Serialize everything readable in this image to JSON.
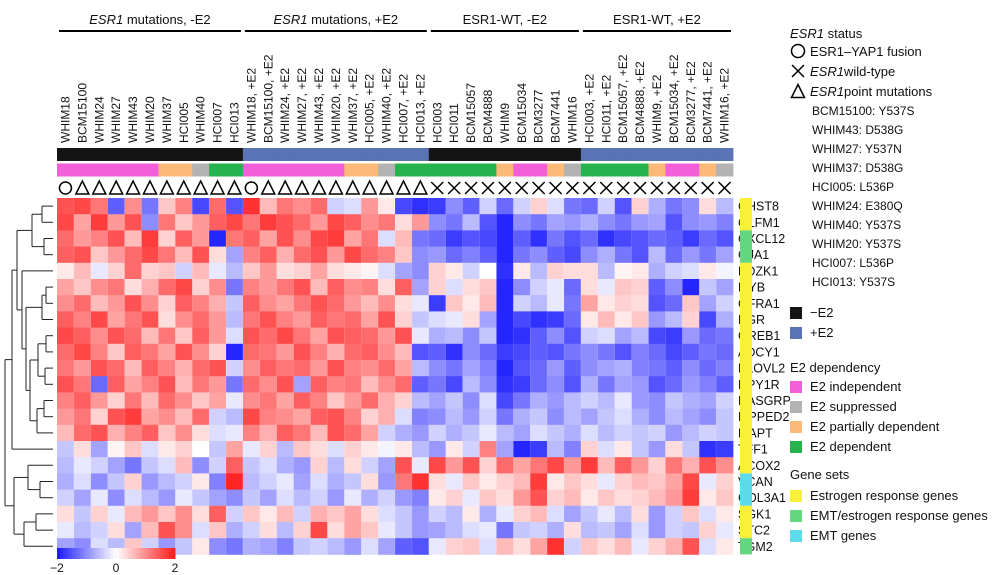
{
  "chart_data": {
    "type": "heatmap",
    "groups": [
      {
        "gene": "ESR1",
        "label": " mutations, -E2",
        "italic_gene": true
      },
      {
        "gene": "ESR1",
        "label": " mutations, +E2",
        "italic_gene": true
      },
      {
        "gene": "",
        "label": "ESR1-WT, -E2",
        "italic_gene": false
      },
      {
        "gene": "",
        "label": "ESR1-WT, +E2",
        "italic_gene": false
      }
    ],
    "columns": [
      "WHIM18",
      "BCM15100",
      "WHIM24",
      "WHIM27",
      "WHIM43",
      "WHIM20",
      "WHIM37",
      "HCI005",
      "WHIM40",
      "HCI007",
      "HCI013",
      "WHIM18, +E2",
      "BCM15100, +E2",
      "WHIM24, +E2",
      "WHIM27, +E2",
      "WHIM43, +E2",
      "WHIM20, +E2",
      "WHIM37, +E2",
      "HCI005, +E2",
      "WHIM40, +E2",
      "HCI007, +E2",
      "HCI013, +E2",
      "HCI003",
      "HCI011",
      "BCM15057",
      "BCM4888",
      "WHIM9",
      "BCM15034",
      "BCM3277",
      "BCM7441",
      "WHIM16",
      "HCI003, +E2",
      "HCI011, +E2",
      "BCM15057, +E2",
      "BCM4888, +E2",
      "WHIM9, +E2",
      "BCM15034, +E2",
      "BCM3277, +E2",
      "BCM7441, +E2",
      "WHIM16, +E2"
    ],
    "column_group": [
      0,
      0,
      0,
      0,
      0,
      0,
      0,
      0,
      0,
      0,
      0,
      1,
      1,
      1,
      1,
      1,
      1,
      1,
      1,
      1,
      1,
      1,
      2,
      2,
      2,
      2,
      2,
      2,
      2,
      2,
      2,
      3,
      3,
      3,
      3,
      3,
      3,
      3,
      3,
      3
    ],
    "treatment": [
      "-E2",
      "-E2",
      "-E2",
      "-E2",
      "-E2",
      "-E2",
      "-E2",
      "-E2",
      "-E2",
      "-E2",
      "-E2",
      "+E2",
      "+E2",
      "+E2",
      "+E2",
      "+E2",
      "+E2",
      "+E2",
      "+E2",
      "+E2",
      "+E2",
      "+E2",
      "-E2",
      "-E2",
      "-E2",
      "-E2",
      "-E2",
      "-E2",
      "-E2",
      "-E2",
      "-E2",
      "+E2",
      "+E2",
      "+E2",
      "+E2",
      "+E2",
      "+E2",
      "+E2",
      "+E2",
      "+E2"
    ],
    "dependency": [
      "ind",
      "ind",
      "ind",
      "ind",
      "ind",
      "ind",
      "pdep",
      "pdep",
      "sup",
      "dep",
      "dep",
      "ind",
      "ind",
      "ind",
      "ind",
      "ind",
      "ind",
      "pdep",
      "pdep",
      "sup",
      "dep",
      "dep",
      "dep",
      "dep",
      "dep",
      "dep",
      "pdep",
      "ind",
      "ind",
      "pdep",
      "sup",
      "dep",
      "dep",
      "dep",
      "dep",
      "pdep",
      "ind",
      "ind",
      "pdep",
      "sup"
    ],
    "esr1_status": [
      "fusion",
      "point",
      "point",
      "point",
      "point",
      "point",
      "point",
      "point",
      "point",
      "point",
      "point",
      "fusion",
      "point",
      "point",
      "point",
      "point",
      "point",
      "point",
      "point",
      "point",
      "point",
      "point",
      "wt",
      "wt",
      "wt",
      "wt",
      "wt",
      "wt",
      "wt",
      "wt",
      "wt",
      "wt",
      "wt",
      "wt",
      "wt",
      "wt",
      "wt",
      "wt",
      "wt",
      "wt"
    ],
    "rows": [
      "CHST8",
      "OLFM1",
      "CXCL12",
      "GJA1",
      "PDZK1",
      "MYB",
      "GFRA1",
      "PGR",
      "GREB1",
      "ADCY1",
      "ELOVL2",
      "NPY1R",
      "RASGRP1",
      "MPPED2",
      "MAPT",
      "TFF1",
      "ACOX2",
      "VCAN",
      "COL3A1",
      "SGK1",
      "STC2",
      "TGM2"
    ],
    "gene_set": [
      "est",
      "est",
      "emtest",
      "emtest",
      "est",
      "est",
      "est",
      "est",
      "est",
      "est",
      "est",
      "est",
      "est",
      "est",
      "est",
      "est",
      "est",
      "emt",
      "emt",
      "est",
      "est",
      "emtest"
    ],
    "values": [
      [
        1.5,
        1.6,
        1.2,
        -1.4,
        1.0,
        -1.2,
        0.5,
        1.1,
        -1.6,
        1.3,
        -1.5,
        1.8,
        0.6,
        1.2,
        1.0,
        1.3,
        -0.4,
        -0.3,
        0.9,
        0.2,
        -1.6,
        -1.8,
        -1.7,
        -1.0,
        -1.4,
        -0.4,
        -1.3,
        -0.4,
        0.4,
        -0.3,
        -1.2,
        -1.3,
        -0.4,
        -1.5,
        0.4,
        -0.7,
        -1.2,
        -1.0,
        0.3,
        -0.6
      ],
      [
        1.6,
        0.8,
        1.7,
        0.9,
        1.5,
        -1.0,
        1.2,
        0.5,
        0.9,
        1.4,
        1.6,
        1.2,
        1.7,
        1.5,
        1.3,
        0.9,
        1.6,
        1.4,
        1.0,
        1.2,
        0.3,
        0.9,
        -1.0,
        -1.2,
        -0.6,
        -1.5,
        -1.9,
        -1.0,
        -1.2,
        -0.8,
        -0.9,
        -0.7,
        -1.0,
        -1.2,
        -0.9,
        -0.8,
        -1.5,
        -1.0,
        -0.9,
        -1.1
      ],
      [
        1.3,
        0.9,
        1.1,
        1.5,
        0.6,
        1.7,
        0.4,
        1.4,
        0.9,
        -1.9,
        1.2,
        1.4,
        0.8,
        1.5,
        1.0,
        1.6,
        1.7,
        0.8,
        1.2,
        -0.3,
        0.6,
        -1.2,
        -1.3,
        -1.7,
        -1.5,
        -1.6,
        -1.9,
        -1.4,
        -1.8,
        -1.2,
        -1.5,
        -1.3,
        -1.8,
        -1.6,
        -1.5,
        -1.3,
        -1.4,
        -1.7,
        -1.3,
        -1.5
      ],
      [
        1.4,
        1.5,
        0.5,
        0.9,
        1.3,
        1.6,
        1.2,
        0.6,
        1.5,
        0.3,
        -0.8,
        1.1,
        1.4,
        0.7,
        1.3,
        1.5,
        0.9,
        1.6,
        1.3,
        1.1,
        0.5,
        -1.0,
        -0.9,
        -1.3,
        -1.1,
        -1.4,
        -1.9,
        -1.2,
        -1.0,
        -1.4,
        -1.6,
        -1.0,
        -0.7,
        -1.2,
        -1.5,
        -0.6,
        -1.3,
        -0.9,
        -1.2,
        -0.8
      ],
      [
        0.2,
        0.6,
        -0.2,
        0.4,
        1.3,
        0.4,
        0.5,
        -0.4,
        0.6,
        -0.2,
        -0.6,
        0.5,
        0.9,
        0.3,
        0.4,
        0.8,
        0.3,
        0.2,
        0.1,
        -0.3,
        -0.8,
        -1.0,
        0.4,
        0.2,
        -0.4,
        0.0,
        -1.8,
        0.2,
        -0.6,
        0.4,
        0.3,
        0.3,
        -0.6,
        0.1,
        0.2,
        -0.7,
        -0.4,
        -0.3,
        0.2,
        -0.1
      ],
      [
        0.8,
        0.5,
        1.0,
        1.2,
        0.3,
        0.7,
        1.3,
        1.6,
        0.4,
        1.0,
        -1.2,
        1.1,
        0.9,
        1.2,
        1.5,
        0.6,
        1.4,
        1.0,
        1.1,
        0.3,
        1.4,
        -0.8,
        0.4,
        -0.3,
        0.3,
        0.5,
        -1.9,
        -1.0,
        -0.4,
        -0.2,
        -1.3,
        0.3,
        -0.2,
        0.5,
        0.4,
        -1.4,
        -1.0,
        -1.9,
        -0.5,
        -0.8
      ],
      [
        1.0,
        1.3,
        0.6,
        0.9,
        1.5,
        1.0,
        0.4,
        1.4,
        1.1,
        0.7,
        -0.5,
        1.4,
        1.0,
        0.8,
        1.2,
        1.5,
        1.3,
        0.9,
        0.6,
        1.0,
        0.3,
        -0.2,
        -1.7,
        0.5,
        0.2,
        0.6,
        -1.9,
        -0.4,
        -0.6,
        -0.2,
        -1.2,
        0.8,
        0.2,
        0.4,
        0.3,
        -1.5,
        -1.3,
        0.5,
        -0.8,
        -0.4
      ],
      [
        1.4,
        1.1,
        1.6,
        0.8,
        1.2,
        1.5,
        0.3,
        1.0,
        1.3,
        0.9,
        -0.6,
        1.2,
        1.5,
        1.1,
        0.9,
        1.4,
        1.2,
        1.3,
        0.8,
        1.5,
        0.4,
        -0.5,
        -0.3,
        -0.2,
        0.3,
        -0.8,
        -1.9,
        -1.6,
        -1.8,
        -1.7,
        -1.3,
        0.2,
        0.6,
        0.2,
        0.5,
        -0.9,
        -0.6,
        0.4,
        -1.6,
        -0.7
      ],
      [
        1.6,
        1.4,
        1.0,
        1.5,
        1.3,
        0.6,
        1.2,
        0.5,
        1.4,
        0.9,
        -0.3,
        1.5,
        1.3,
        1.6,
        1.2,
        0.8,
        1.5,
        1.4,
        1.3,
        0.9,
        1.5,
        -0.2,
        -0.7,
        -0.6,
        -1.0,
        -0.5,
        -1.9,
        -1.8,
        -1.4,
        -1.0,
        -1.5,
        -0.4,
        -0.3,
        -0.8,
        -0.6,
        -1.6,
        -1.7,
        -0.9,
        -1.3,
        -1.2
      ],
      [
        1.3,
        1.6,
        1.1,
        0.5,
        1.4,
        1.2,
        0.8,
        1.5,
        1.0,
        0.4,
        -1.9,
        1.3,
        1.2,
        0.9,
        1.5,
        1.1,
        0.7,
        1.3,
        1.4,
        1.0,
        0.6,
        -1.5,
        -1.4,
        -1.8,
        -1.0,
        -1.3,
        -1.7,
        -1.6,
        -1.4,
        -1.5,
        -1.2,
        -1.0,
        -1.2,
        -1.5,
        -1.1,
        -1.3,
        -1.6,
        -1.4,
        -1.2,
        -1.3
      ],
      [
        1.2,
        0.9,
        1.5,
        1.3,
        0.6,
        1.4,
        1.1,
        0.7,
        1.3,
        1.5,
        -0.4,
        1.0,
        1.4,
        1.2,
        1.3,
        0.9,
        1.5,
        1.1,
        1.0,
        1.3,
        0.8,
        -0.6,
        -1.0,
        -1.2,
        -0.8,
        -1.1,
        -1.9,
        -1.5,
        -1.3,
        -0.9,
        -1.4,
        -1.0,
        -0.8,
        -0.7,
        -1.1,
        -1.2,
        -1.4,
        -1.0,
        -1.3,
        -1.1
      ],
      [
        1.5,
        1.2,
        -1.3,
        1.4,
        0.8,
        1.1,
        1.5,
        0.6,
        1.2,
        0.9,
        -1.2,
        1.3,
        1.0,
        1.5,
        -0.8,
        1.4,
        1.1,
        1.2,
        0.6,
        1.0,
        1.3,
        -1.4,
        -1.2,
        -1.6,
        -0.6,
        -1.0,
        -1.8,
        -1.7,
        -1.3,
        -1.0,
        -1.5,
        -0.7,
        -1.2,
        -0.8,
        -0.9,
        -1.5,
        -1.3,
        -0.9,
        -1.1,
        -1.4
      ],
      [
        1.1,
        1.4,
        0.9,
        0.4,
        1.2,
        0.6,
        1.3,
        1.0,
        0.5,
        0.8,
        -0.2,
        1.0,
        1.2,
        0.8,
        1.4,
        1.1,
        0.5,
        0.9,
        1.3,
        0.7,
        0.4,
        -0.6,
        -0.8,
        -0.5,
        -1.0,
        -0.3,
        -1.6,
        -1.2,
        -0.7,
        -0.9,
        -0.6,
        -0.4,
        -0.6,
        -0.2,
        -0.9,
        -1.0,
        -0.5,
        -0.7,
        -0.8,
        -0.4
      ],
      [
        0.9,
        1.2,
        0.4,
        1.5,
        1.7,
        0.8,
        1.0,
        0.6,
        1.3,
        -0.4,
        -0.6,
        1.6,
        1.1,
        1.0,
        0.8,
        1.4,
        1.5,
        1.1,
        0.4,
        0.7,
        -0.3,
        -1.1,
        -1.0,
        -0.6,
        -0.9,
        -0.4,
        -1.2,
        -0.7,
        -0.5,
        -1.0,
        -0.6,
        -0.8,
        -0.5,
        -0.3,
        -0.7,
        -1.0,
        -0.6,
        -0.8,
        -1.0,
        -0.5
      ],
      [
        0.6,
        1.3,
        1.5,
        0.7,
        1.1,
        1.4,
        0.5,
        1.0,
        0.3,
        -0.3,
        -0.2,
        1.1,
        0.7,
        1.4,
        1.2,
        0.6,
        1.5,
        1.3,
        0.8,
        -0.4,
        -0.7,
        -0.9,
        -0.4,
        -0.7,
        -0.5,
        -0.2,
        -0.6,
        -0.8,
        -0.3,
        -0.5,
        -0.7,
        -0.3,
        -0.6,
        -0.4,
        -0.5,
        -0.4,
        -0.9,
        -0.6,
        -0.4,
        -0.5
      ],
      [
        -0.5,
        0.3,
        -0.8,
        0.1,
        0.5,
        -0.3,
        0.2,
        0.4,
        0.0,
        -0.5,
        0.8,
        -0.2,
        0.4,
        -0.6,
        0.5,
        0.3,
        -0.3,
        0.4,
        0.2,
        -0.1,
        0.2,
        -0.6,
        -0.9,
        0.2,
        -0.4,
        1.1,
        -0.8,
        -1.9,
        -1.7,
        -0.6,
        -1.1,
        0.4,
        -0.3,
        0.2,
        -0.5,
        -0.9,
        0.3,
        -0.5,
        -1.8,
        -1.7
      ],
      [
        -0.6,
        -0.2,
        -0.4,
        -0.8,
        -1.2,
        -0.5,
        -0.3,
        0.6,
        -1.0,
        -0.4,
        1.4,
        -0.5,
        -0.3,
        -0.7,
        -0.9,
        0.4,
        -0.6,
        0.3,
        -0.4,
        -0.8,
        1.5,
        -0.2,
        1.6,
        0.9,
        1.5,
        0.4,
        1.3,
        0.8,
        1.2,
        1.6,
        0.9,
        1.7,
        0.6,
        1.4,
        0.9,
        0.4,
        1.2,
        0.7,
        1.5,
        1.0
      ],
      [
        -0.7,
        -0.3,
        -1.0,
        -0.5,
        0.4,
        -0.9,
        -0.6,
        -0.4,
        0.2,
        -1.1,
        1.9,
        -0.6,
        -0.4,
        -0.2,
        -0.8,
        -0.3,
        -0.7,
        -0.5,
        0.3,
        -0.9,
        1.2,
        1.8,
        0.3,
        -0.2,
        0.5,
        0.2,
        0.4,
        0.6,
        1.7,
        0.2,
        0.5,
        0.3,
        -0.2,
        0.4,
        0.6,
        0.5,
        0.8,
        1.6,
        -0.2,
        0.4
      ],
      [
        -0.4,
        -0.8,
        -0.2,
        -1.0,
        -0.3,
        -0.6,
        -0.9,
        -0.2,
        -0.5,
        -0.8,
        -1.0,
        -0.5,
        -0.8,
        -0.3,
        -0.6,
        -0.4,
        -0.9,
        -0.2,
        -0.7,
        -0.4,
        -0.9,
        -1.1,
        0.2,
        0.4,
        -0.2,
        0.5,
        0.3,
        0.9,
        1.5,
        0.4,
        0.6,
        0.2,
        0.5,
        0.3,
        0.4,
        0.6,
        0.9,
        1.7,
        0.2,
        0.5
      ],
      [
        0.3,
        -0.5,
        0.4,
        -0.2,
        0.6,
        0.9,
        0.5,
        1.0,
        0.3,
        1.4,
        -0.4,
        0.5,
        0.2,
        0.6,
        -0.4,
        0.7,
        0.5,
        0.8,
        0.3,
        -0.3,
        -0.5,
        -0.9,
        -0.4,
        -0.6,
        0.2,
        -0.7,
        -0.2,
        0.4,
        0.6,
        -0.3,
        -0.8,
        -0.5,
        -0.2,
        -0.6,
        0.3,
        -0.9,
        -0.4,
        0.5,
        -0.3,
        0.2
      ],
      [
        -0.2,
        -0.6,
        -0.4,
        0.3,
        -0.8,
        0.6,
        1.5,
        1.0,
        -0.3,
        0.5,
        -0.7,
        -0.4,
        0.3,
        -0.6,
        0.4,
        1.6,
        0.3,
        0.8,
        0.5,
        -0.2,
        -0.5,
        -0.9,
        -0.8,
        -0.6,
        -0.3,
        -0.2,
        -1.2,
        -0.5,
        -0.4,
        -0.7,
        0.3,
        -0.6,
        -0.5,
        -0.8,
        -0.3,
        -0.9,
        -0.4,
        -0.5,
        0.4,
        -0.2
      ],
      [
        -0.8,
        -1.0,
        -0.3,
        -0.6,
        0.5,
        -0.4,
        -0.9,
        -0.5,
        0.2,
        -1.0,
        -1.2,
        -0.7,
        -0.8,
        -1.1,
        -0.5,
        -0.4,
        -0.6,
        -0.9,
        -0.3,
        -0.8,
        -1.4,
        -1.5,
        -0.2,
        0.4,
        0.5,
        -0.3,
        0.6,
        0.3,
        0.8,
        1.8,
        -0.4,
        0.5,
        0.3,
        0.6,
        -0.2,
        0.4,
        0.7,
        1.5,
        -0.3,
        0.2
      ]
    ],
    "color_scale": {
      "min": -2,
      "mid": 0,
      "max": 2,
      "low_color": "#1a1aff",
      "mid_color": "#ffffff",
      "high_color": "#ff1a1a",
      "tick_labels": [
        "−2",
        "0",
        "2"
      ]
    },
    "colors": {
      "treatment": {
        "-E2": "#141414",
        "+E2": "#5a73b5"
      },
      "dependency": {
        "ind": "#f25fd9",
        "sup": "#b3b3b3",
        "pdep": "#fcb977",
        "dep": "#26b34d"
      },
      "gene_set": {
        "est": "#f9f03a",
        "emtest": "#63d67f",
        "emt": "#5ddbea"
      }
    }
  },
  "legend": {
    "status_title_gene": "ESR1",
    "status_title_rest": " status",
    "fusion_label": "ESR1–YAP1 fusion",
    "wt_gene": "ESR1",
    "wt_rest": " wild-type",
    "point_gene": "ESR1",
    "point_rest": " point mutations",
    "mutations": [
      "BCM15100: Y537S",
      "WHIM43: D538G",
      "WHIM27: Y537N",
      "WHIM37: D538G",
      "HCI005: L536P",
      "WHIM24: E380Q",
      "WHIM40: Y537S",
      "WHIM20: Y537S",
      "HCI007: L536P",
      "HCI013: Y537S"
    ],
    "treat_minus": "−E2",
    "treat_plus": "+E2",
    "dependency_title": "E2 dependency",
    "dep_independent": "E2 independent",
    "dep_suppressed": "E2 suppressed",
    "dep_partial": "E2 partially dependent",
    "dep_dependent": "E2 dependent",
    "genesets_title": "Gene sets",
    "gs_estrogen": "Estrogen response genes",
    "gs_emt_estrogen": "EMT/estrogen response genes",
    "gs_emt": "EMT genes"
  }
}
